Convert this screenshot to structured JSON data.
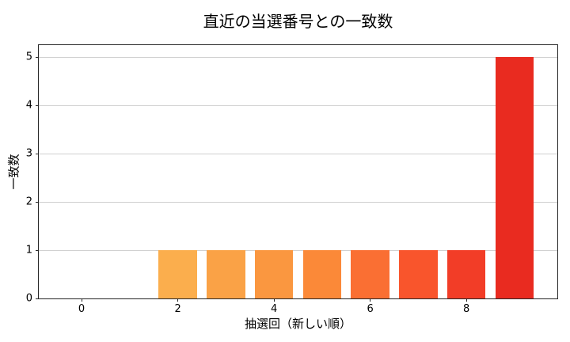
{
  "chart_data": {
    "type": "bar",
    "title": "直近の当選番号との一致数",
    "xlabel": "抽選回（新しい順）",
    "ylabel": "一致数",
    "categories": [
      0,
      1,
      2,
      3,
      4,
      5,
      6,
      7,
      8,
      9
    ],
    "values": [
      0,
      0,
      1,
      1,
      1,
      1,
      1,
      1,
      1,
      5
    ],
    "bar_colors": [
      null,
      null,
      "#FBAE4D",
      "#FAA246",
      "#FA9740",
      "#FB8938",
      "#FA6F33",
      "#F9552C",
      "#F23D27",
      "#E92B20"
    ],
    "bar_width": 0.8,
    "xlim": [
      -0.89,
      9.89
    ],
    "ylim": [
      0,
      5.25
    ],
    "xticks": [
      0,
      2,
      4,
      6,
      8
    ],
    "yticks": [
      0,
      1,
      2,
      3,
      4,
      5
    ],
    "grid": "horizontal",
    "grid_color": "#d0d0d0",
    "spine_color": "#262626",
    "background": "#ffffff",
    "legend": "none"
  }
}
